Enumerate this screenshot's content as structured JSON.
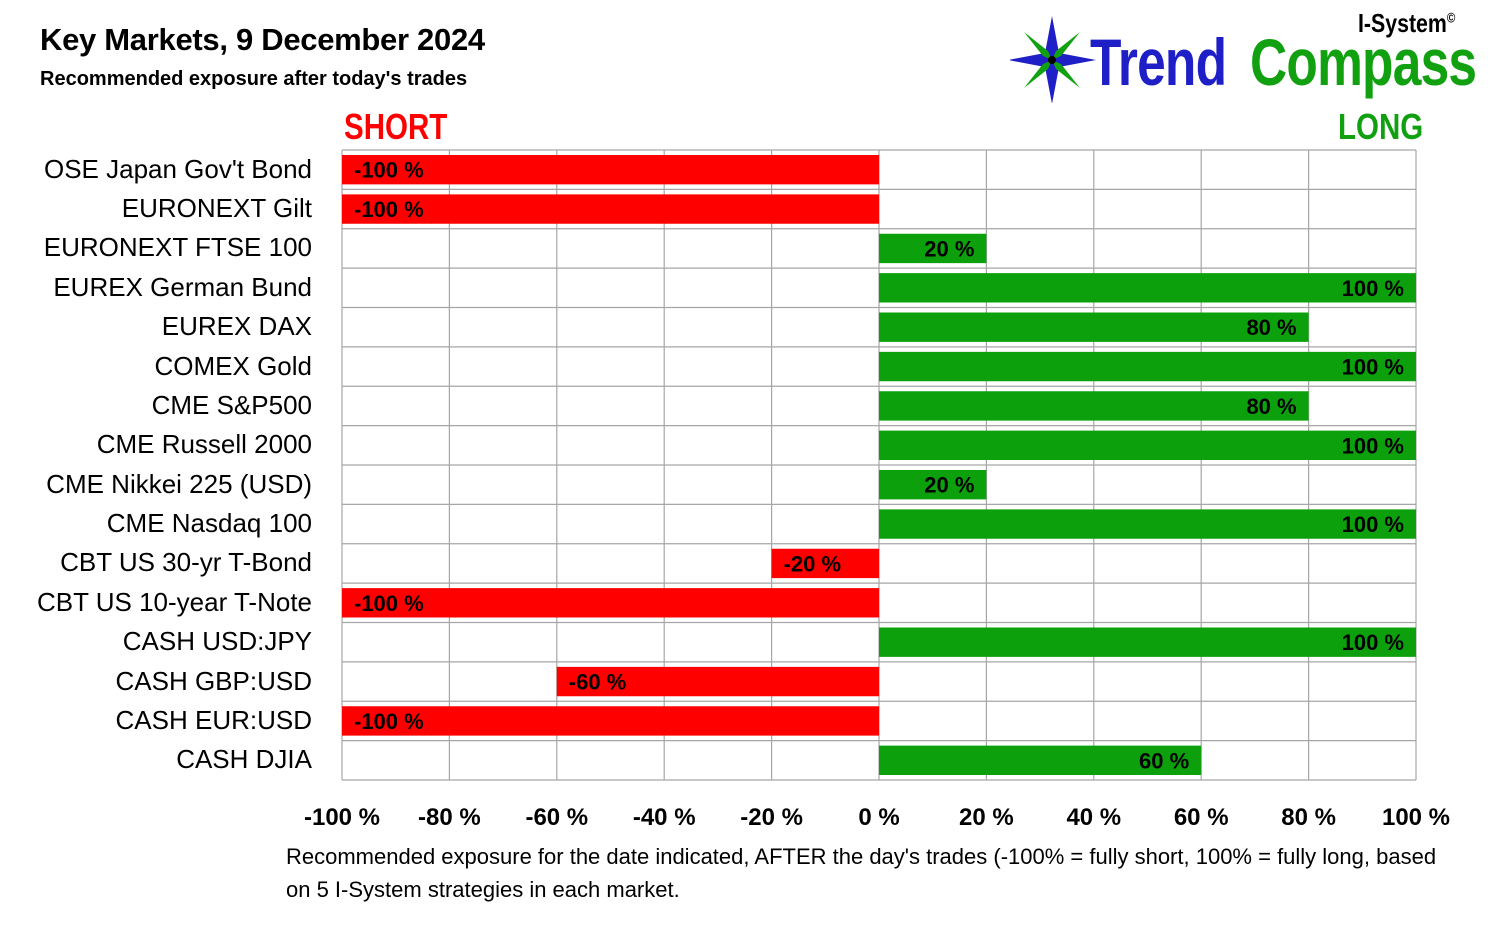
{
  "header": {
    "title": "Key Markets, 9 December 2024",
    "subtitle": "Recommended exposure after today's trades"
  },
  "logo": {
    "brand": "I-System",
    "copyright": "©",
    "word1": "Trend",
    "word2": "Compass",
    "colors": {
      "trend": "#1f1fc8",
      "compass": "#10a010"
    }
  },
  "labels": {
    "short": "SHORT",
    "long": "LONG"
  },
  "footnote": "Recommended exposure for the date indicated, AFTER the day's trades (-100% = fully short, 100% = fully long, based on 5 I-System strategies in each market.",
  "chart_data": {
    "type": "bar",
    "orientation": "horizontal",
    "categories": [
      "OSE Japan Gov't Bond",
      "EURONEXT Gilt",
      "EURONEXT FTSE 100",
      "EUREX German Bund",
      "EUREX DAX",
      "COMEX Gold",
      "CME S&P500",
      "CME Russell 2000",
      "CME Nikkei 225 (USD)",
      "CME Nasdaq 100",
      "CBT US 30-yr T-Bond",
      "CBT US 10-year T-Note",
      "CASH USD:JPY",
      "CASH GBP:USD",
      "CASH EUR:USD",
      "CASH DJIA"
    ],
    "values": [
      -100,
      -100,
      20,
      100,
      80,
      100,
      80,
      100,
      20,
      100,
      -20,
      -100,
      100,
      -60,
      -100,
      60
    ],
    "data_labels": [
      "-100 %",
      "-100 %",
      "20 %",
      "100 %",
      "80 %",
      "100 %",
      "80 %",
      "100 %",
      "20 %",
      "100 %",
      "-20 %",
      "-100 %",
      "100 %",
      "-60 %",
      "-100 %",
      "60 %"
    ],
    "xlim": [
      -100,
      100
    ],
    "x_ticks": [
      -100,
      -80,
      -60,
      -40,
      -20,
      0,
      20,
      40,
      60,
      80,
      100
    ],
    "x_tick_labels": [
      "-100 %",
      "-80 %",
      "-60 %",
      "-40 %",
      "-20 %",
      "0 %",
      "20 %",
      "40 %",
      "60 %",
      "80 %",
      "100 %"
    ],
    "grid": true,
    "legend": "none",
    "colors": {
      "negative": "#ff0000",
      "positive": "#0ca00c",
      "grid": "#a6a6a6"
    }
  }
}
